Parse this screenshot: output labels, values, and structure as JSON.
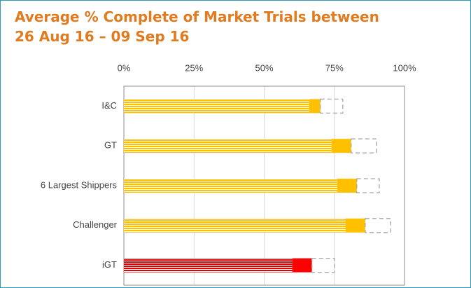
{
  "chart_data": {
    "type": "stacked-bar-horizontal",
    "title": [
      "Average % Complete of Market Trials between",
      "26 Aug 16 – 09 Sep 16"
    ],
    "categories": [
      "I&C",
      "GT",
      "6 Largest Shippers",
      "Challenger",
      "iGT"
    ],
    "series": [
      {
        "style": "striped",
        "colors": [
          "#ffc000",
          "#ffc000",
          "#ffc000",
          "#ffc000",
          "#e00000"
        ],
        "values": [
          66,
          74,
          76,
          79,
          60
        ]
      },
      {
        "style": "solid",
        "colors": [
          "#ffc000",
          "#ffc000",
          "#ffc000",
          "#ffc000",
          "#ff0000"
        ],
        "values": [
          4,
          7,
          7,
          7,
          7
        ]
      },
      {
        "style": "dashed",
        "colors": [
          "#a6a6a6",
          "#a6a6a6",
          "#a6a6a6",
          "#a6a6a6",
          "#a6a6a6"
        ],
        "values": [
          8,
          9,
          8,
          9,
          8
        ]
      }
    ],
    "xlim": [
      0,
      100
    ],
    "xticks": [
      {
        "value": 0,
        "label": "0%"
      },
      {
        "value": 25,
        "label": "25%"
      },
      {
        "value": 50,
        "label": "50%"
      },
      {
        "value": 75,
        "label": "75%"
      },
      {
        "value": 100,
        "label": "100%"
      }
    ],
    "grid": true
  }
}
